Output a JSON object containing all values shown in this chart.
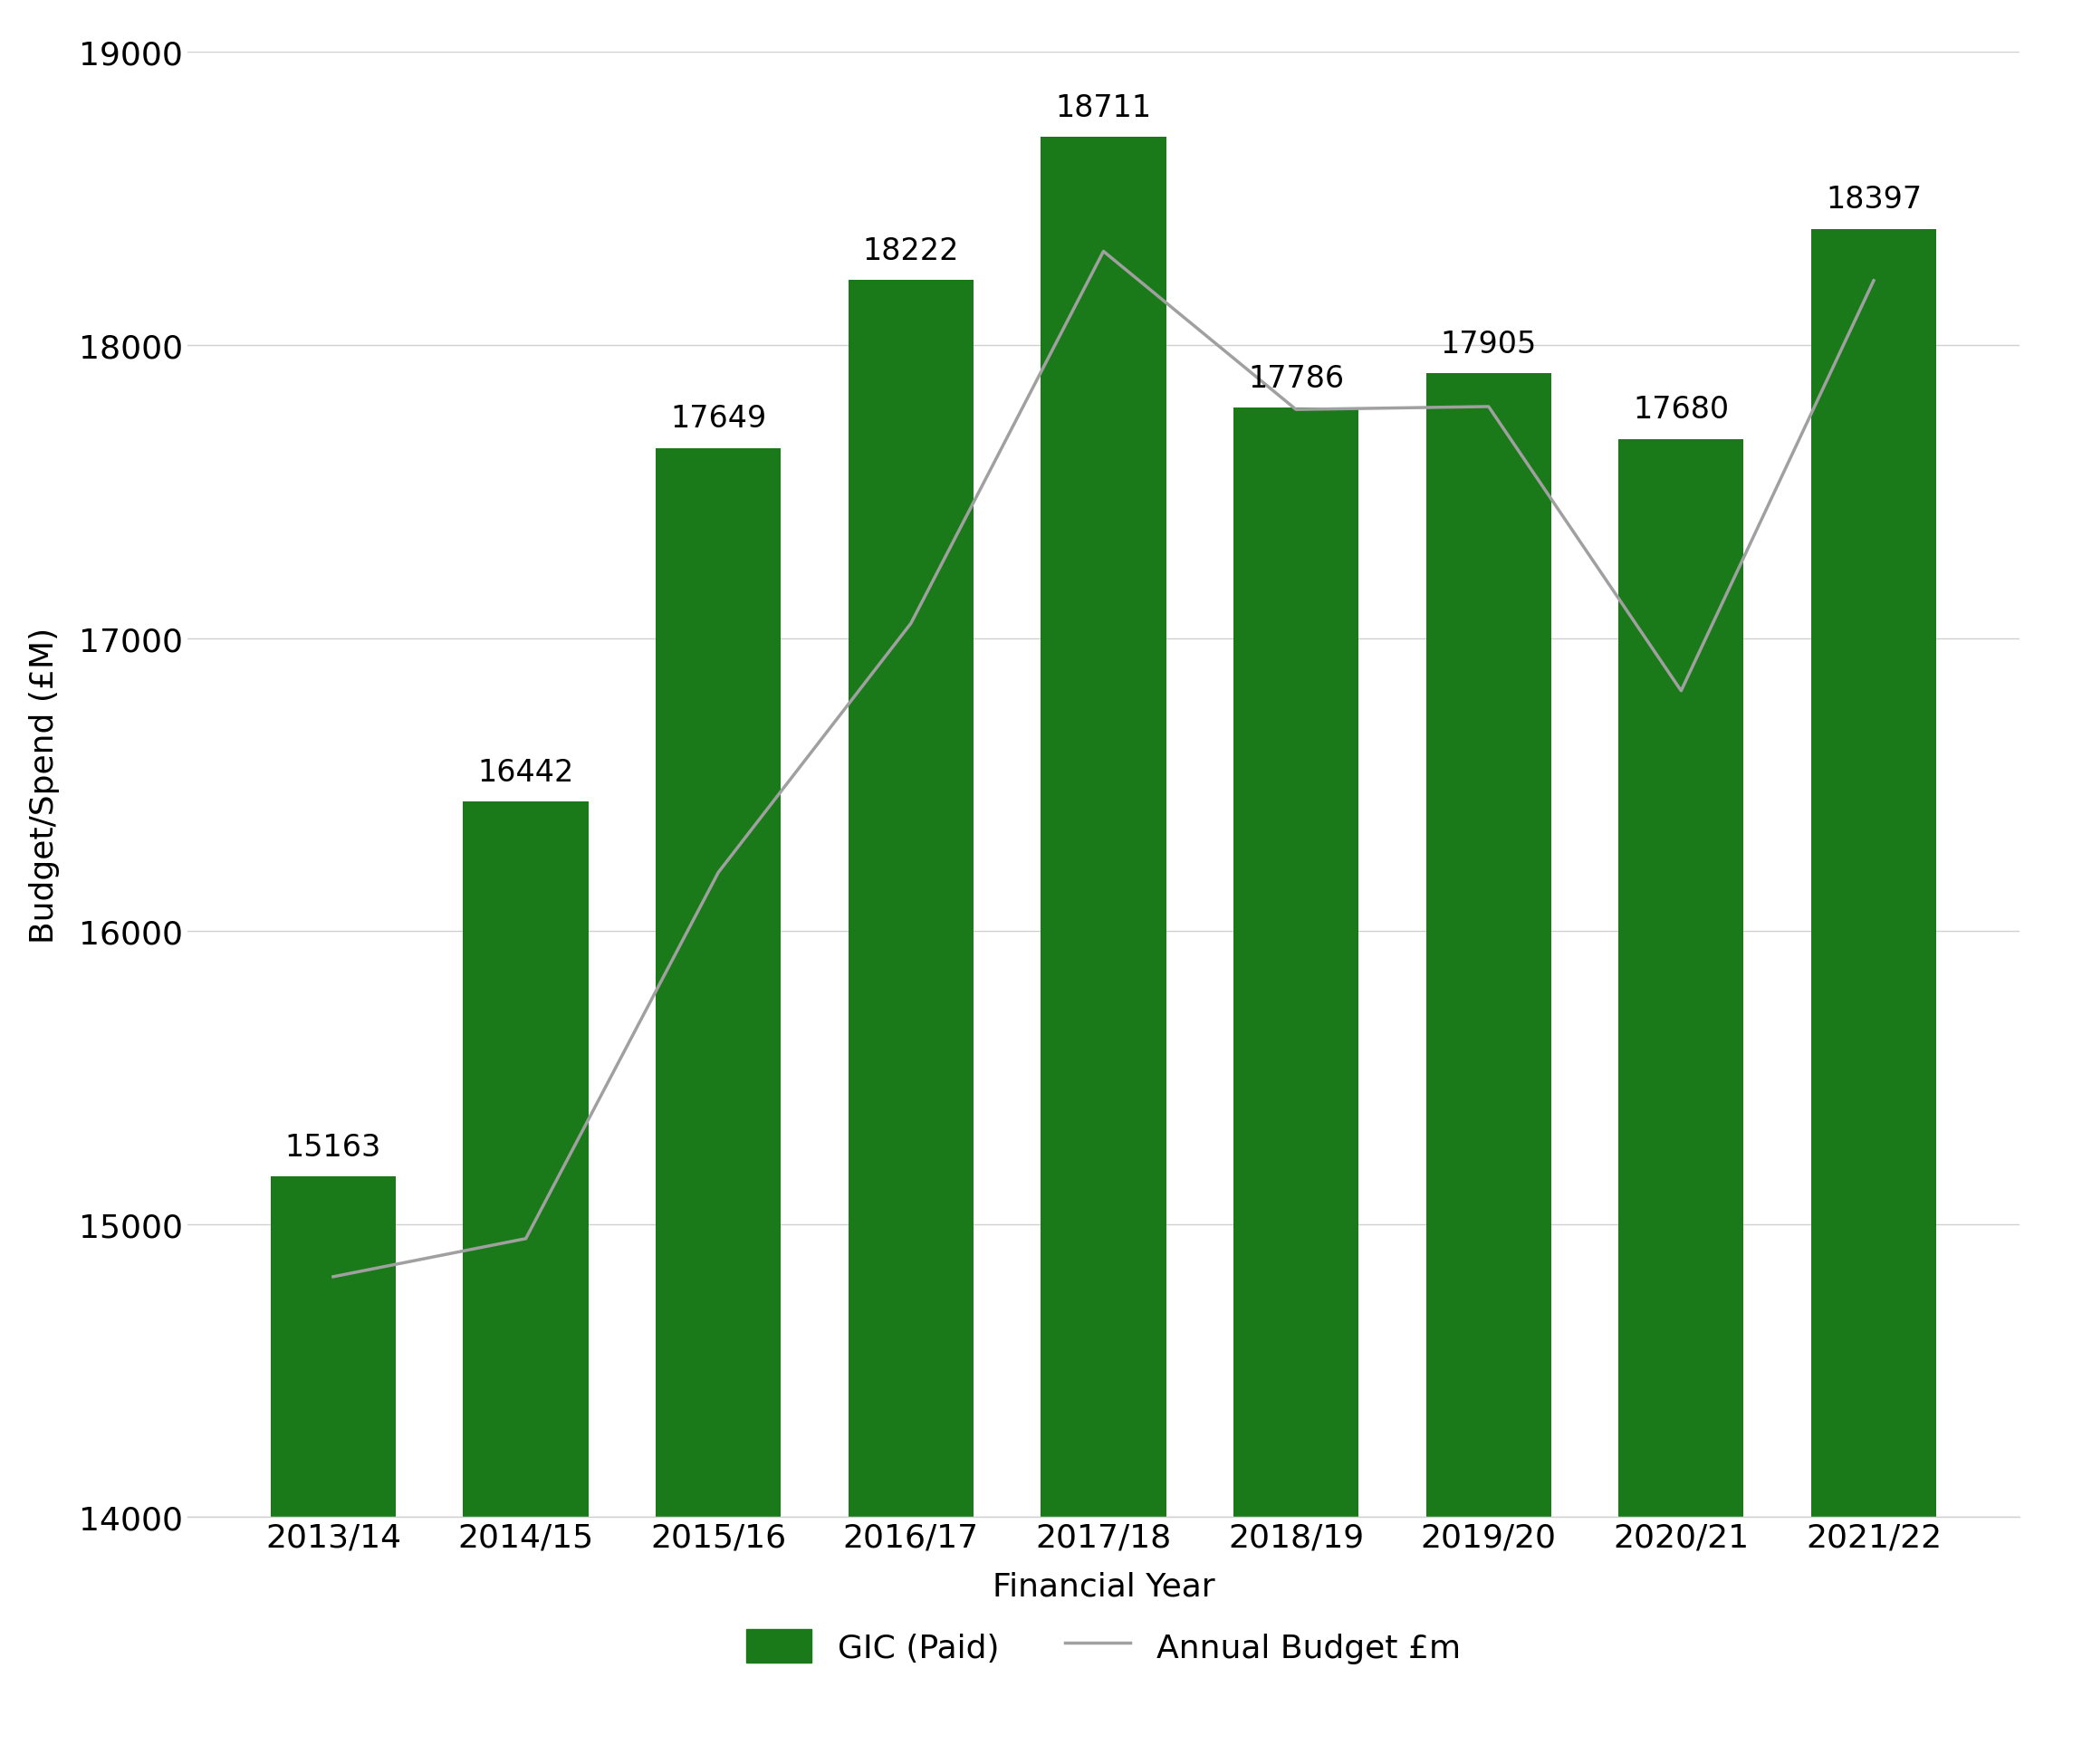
{
  "years": [
    "2013/14",
    "2014/15",
    "2015/16",
    "2016/17",
    "2017/18",
    "2018/19",
    "2019/20",
    "2020/21",
    "2021/22"
  ],
  "gic_paid": [
    15163,
    16442,
    17649,
    18222,
    18711,
    17786,
    17905,
    17680,
    18397
  ],
  "annual_budget": [
    14820,
    14950,
    16200,
    17050,
    18320,
    17780,
    17790,
    16820,
    18220
  ],
  "bar_color": "#1a7a1a",
  "line_color": "#a0a0a0",
  "ylabel": "Budget/Spend (£M)",
  "xlabel": "Financial Year",
  "ylim_min": 14000,
  "ylim_max": 19000,
  "yticks": [
    14000,
    15000,
    16000,
    17000,
    18000,
    19000
  ],
  "legend_bar_label": "GIC (Paid)",
  "legend_line_label": "Annual Budget £m",
  "background_color": "#ffffff",
  "label_fontsize": 26,
  "tick_fontsize": 26,
  "bar_label_fontsize": 24,
  "legend_fontsize": 26
}
